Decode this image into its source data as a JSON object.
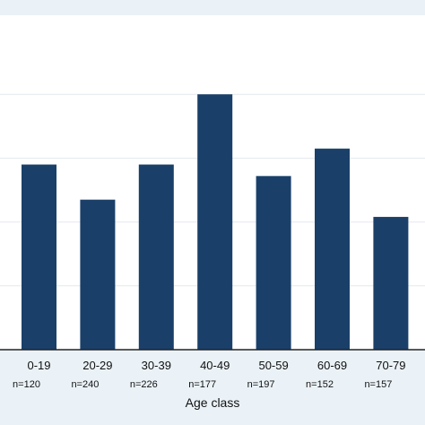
{
  "chart_data": {
    "type": "bar",
    "title": "",
    "xlabel": "Age class",
    "ylabel": "",
    "categories": [
      "0-19",
      "20-29",
      "30-39",
      "40-49",
      "50-59",
      "60-69",
      "70-79"
    ],
    "sample_sizes": [
      "n=120",
      "n=240",
      "n=226",
      "n=177",
      "n=197",
      "n=152",
      "n=157"
    ],
    "values": [
      2.9,
      2.35,
      2.9,
      4.0,
      2.72,
      3.15,
      2.08
    ],
    "ylim": [
      0,
      5
    ],
    "y_gridlines": [
      1,
      2,
      3,
      4
    ],
    "grid": true,
    "legend": "none",
    "colors": {
      "bar": "#1a4069",
      "plot_background": "#ffffff",
      "outer_background": "#eaf2f7",
      "gridline": "#e3e9ee",
      "axis": "#222222"
    }
  }
}
